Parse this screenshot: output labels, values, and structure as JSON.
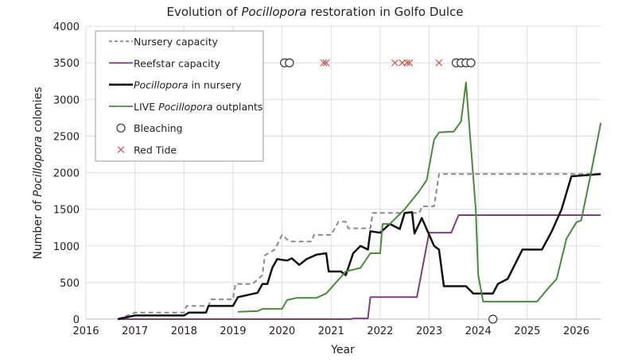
{
  "chart_data": {
    "type": "line",
    "title_parts": [
      "Evolution of ",
      "Pocillopora",
      " restoration in Golfo Dulce"
    ],
    "xlabel": "Year",
    "ylabel_parts": [
      "Number of ",
      "Pocillopora",
      " colonies"
    ],
    "xlim": [
      2016,
      2026.5
    ],
    "ylim": [
      0,
      4000
    ],
    "xticks": [
      2016,
      2017,
      2018,
      2019,
      2020,
      2021,
      2022,
      2023,
      2024,
      2025,
      2026
    ],
    "yticks": [
      0,
      500,
      1000,
      1500,
      2000,
      2500,
      3000,
      3500,
      4000
    ],
    "grid": true,
    "legend_position": "top-left",
    "series": [
      {
        "name": "Nursery capacity",
        "legend_parts": [
          "Nursery capacity"
        ],
        "color": "#8a8a8a",
        "dash": true,
        "x": [
          2016.65,
          2017.0,
          2018.0,
          2018.05,
          2018.5,
          2018.55,
          2019.0,
          2019.05,
          2019.4,
          2019.6,
          2019.65,
          2019.85,
          2020.0,
          2020.15,
          2020.6,
          2020.65,
          2021.0,
          2021.15,
          2021.3,
          2021.35,
          2021.8,
          2021.85,
          2022.8,
          2022.85,
          2023.1,
          2023.2,
          2026.5
        ],
        "y": [
          0,
          90,
          90,
          180,
          180,
          270,
          270,
          480,
          480,
          600,
          870,
          950,
          1150,
          1060,
          1060,
          1150,
          1150,
          1330,
          1330,
          1240,
          1240,
          1450,
          1450,
          1540,
          1540,
          1980,
          1980
        ]
      },
      {
        "name": "Reefstar capacity",
        "legend_parts": [
          "Reefstar capacity"
        ],
        "color": "#7b3f7b",
        "dash": false,
        "x": [
          2016.65,
          2021.4,
          2021.45,
          2021.75,
          2021.8,
          2022.75,
          2023.0,
          2023.45,
          2023.6,
          2026.5
        ],
        "y": [
          0,
          0,
          10,
          10,
          300,
          300,
          1180,
          1180,
          1420,
          1420
        ]
      },
      {
        "name": "Pocillopora in nursery",
        "legend_parts": [
          "",
          "Pocillopora",
          " in nursery"
        ],
        "color": "#111111",
        "dash": false,
        "x": [
          2016.65,
          2017.0,
          2018.0,
          2018.1,
          2018.45,
          2018.5,
          2019.0,
          2019.1,
          2019.5,
          2019.6,
          2019.7,
          2019.8,
          2019.9,
          2020.1,
          2020.2,
          2020.35,
          2020.5,
          2020.7,
          2020.9,
          2020.95,
          2021.2,
          2021.3,
          2021.45,
          2021.6,
          2021.75,
          2021.8,
          2022.0,
          2022.2,
          2022.4,
          2022.5,
          2022.65,
          2022.7,
          2022.85,
          2023.1,
          2023.2,
          2023.3,
          2023.6,
          2023.75,
          2023.9,
          2024.3,
          2024.4,
          2024.6,
          2024.9,
          2025.3,
          2025.5,
          2025.7,
          2025.9,
          2026.5
        ],
        "y": [
          0,
          50,
          50,
          90,
          90,
          180,
          180,
          300,
          360,
          480,
          480,
          700,
          820,
          800,
          830,
          740,
          820,
          880,
          900,
          650,
          650,
          600,
          900,
          1000,
          950,
          1200,
          1180,
          1300,
          1230,
          1450,
          1460,
          1170,
          1380,
          1000,
          950,
          450,
          450,
          450,
          350,
          350,
          480,
          550,
          950,
          950,
          1200,
          1500,
          1950,
          1980
        ]
      },
      {
        "name": "LIVE Pocillopora outplants",
        "legend_parts": [
          "LIVE ",
          "Pocillopora",
          " outplants"
        ],
        "color": "#4a8a3f",
        "dash": false,
        "x": [
          2019.1,
          2019.5,
          2019.6,
          2020.0,
          2020.1,
          2020.3,
          2020.7,
          2020.9,
          2021.1,
          2021.3,
          2021.6,
          2021.8,
          2022.0,
          2022.05,
          2022.2,
          2022.5,
          2022.8,
          2022.95,
          2023.1,
          2023.2,
          2023.5,
          2023.65,
          2023.75,
          2023.95,
          2024.0,
          2024.1,
          2025.2,
          2025.4,
          2025.6,
          2025.8,
          2026.0,
          2026.1,
          2026.3,
          2026.5
        ],
        "y": [
          100,
          110,
          140,
          140,
          260,
          290,
          290,
          350,
          500,
          650,
          700,
          900,
          900,
          1300,
          1300,
          1500,
          1750,
          1900,
          2450,
          2550,
          2560,
          2700,
          3230,
          1500,
          600,
          240,
          240,
          400,
          550,
          1100,
          1320,
          1350,
          2000,
          2680
        ]
      }
    ],
    "markers": [
      {
        "name": "Bleaching",
        "symbol": "circle",
        "color": "#333333",
        "points": [
          [
            2020.05,
            3500
          ],
          [
            2020.15,
            3500
          ],
          [
            2023.55,
            3500
          ],
          [
            2023.65,
            3500
          ],
          [
            2023.75,
            3500
          ],
          [
            2023.85,
            3500
          ],
          [
            2024.3,
            0
          ]
        ]
      },
      {
        "name": "Red Tide",
        "symbol": "x",
        "color": "#c0504d",
        "points": [
          [
            2020.85,
            3500
          ],
          [
            2020.9,
            3500
          ],
          [
            2022.3,
            3500
          ],
          [
            2022.45,
            3500
          ],
          [
            2022.55,
            3500
          ],
          [
            2022.6,
            3500
          ],
          [
            2023.2,
            3500
          ]
        ]
      }
    ]
  }
}
